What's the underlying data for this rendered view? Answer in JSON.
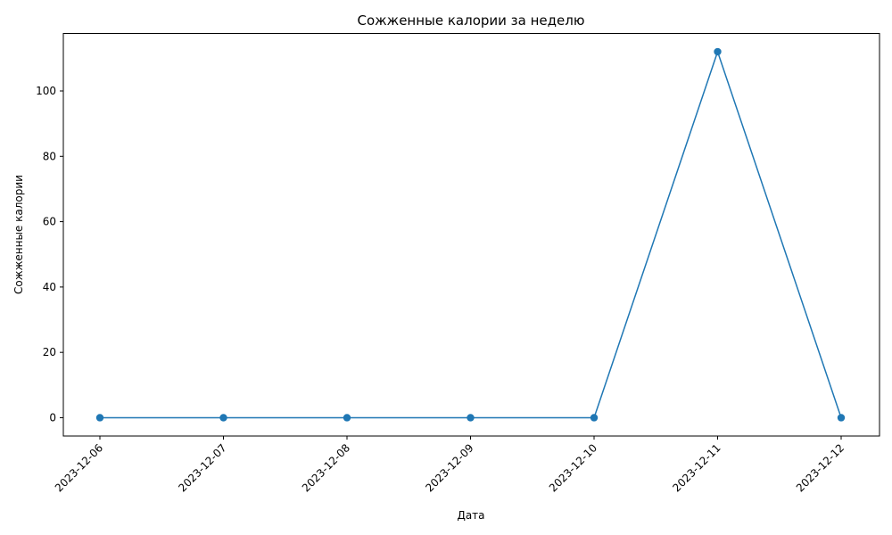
{
  "chart_data": {
    "type": "line",
    "title": "Сожженные калории за неделю",
    "xlabel": "Дата",
    "ylabel": "Сожженные калории",
    "categories": [
      "2023-12-06",
      "2023-12-07",
      "2023-12-08",
      "2023-12-09",
      "2023-12-10",
      "2023-12-11",
      "2023-12-12"
    ],
    "series": [
      {
        "values": [
          0,
          0,
          0,
          0,
          0,
          112,
          0
        ],
        "color": "#1f77b4",
        "marker": "circle"
      }
    ],
    "ylim": [
      -5.6,
      117.6
    ],
    "yticks": [
      0,
      20,
      40,
      60,
      80,
      100
    ],
    "grid": false,
    "legend": "none",
    "xtick_rotation": 45
  }
}
